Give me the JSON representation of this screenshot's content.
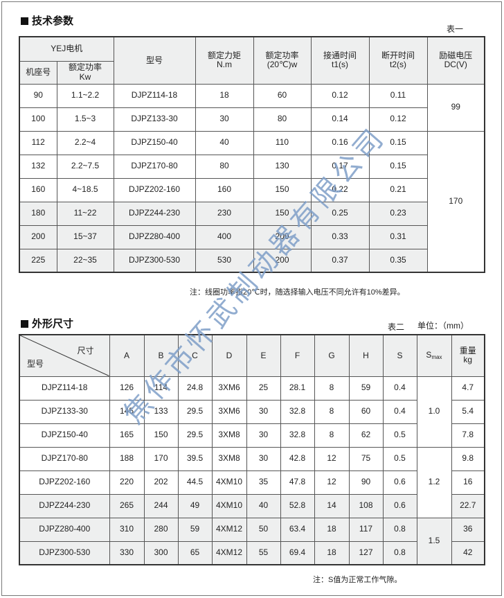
{
  "section1": {
    "title": "技术参数",
    "table_tag": "表一",
    "headers": {
      "motor_group": "YEJ电机",
      "frame": "机座号",
      "rated_power": "额定功率",
      "rated_power_unit": "Kw",
      "model": "型号",
      "torque": "额定力矩",
      "torque_unit": "N.m",
      "power": "额定功率",
      "power_unit": "(20℃)w",
      "t1": "接通时间",
      "t1_unit": "t1(s)",
      "t2": "断开时间",
      "t2_unit": "t2(s)",
      "dc": "励磁电压",
      "dc_unit": "DC(V)"
    },
    "rows": [
      [
        "90",
        "1.1~2.2",
        "DJPZ114-18",
        "18",
        "60",
        "0.12",
        "0.11"
      ],
      [
        "100",
        "1.5~3",
        "DJPZ133-30",
        "30",
        "80",
        "0.14",
        "0.12"
      ],
      [
        "112",
        "2.2~4",
        "DJPZ150-40",
        "40",
        "110",
        "0.16",
        "0.15"
      ],
      [
        "132",
        "2.2~7.5",
        "DJPZ170-80",
        "80",
        "130",
        "0.17",
        "0.15"
      ],
      [
        "160",
        "4~18.5",
        "DJPZ202-160",
        "160",
        "150",
        "0.22",
        "0.21"
      ],
      [
        "180",
        "11~22",
        "DJPZ244-230",
        "230",
        "150",
        "0.25",
        "0.23"
      ],
      [
        "200",
        "15~37",
        "DJPZ280-400",
        "400",
        "200",
        "0.33",
        "0.31"
      ],
      [
        "225",
        "22~35",
        "DJPZ300-530",
        "530",
        "200",
        "0.37",
        "0.35"
      ]
    ],
    "dc_values": [
      "99",
      "170"
    ],
    "note": "注：线圈功率指20℃时，随选择输入电压不同允许有10%差异。"
  },
  "section2": {
    "title": "外形尺寸",
    "table_tag": "表二",
    "unit": "单位：（mm）",
    "headers": {
      "dim": "尺寸",
      "model": "型号",
      "cols": [
        "A",
        "B",
        "C",
        "D",
        "E",
        "F",
        "G",
        "H",
        "S"
      ],
      "smax": "S",
      "smax_sub": "max",
      "weight": "重量",
      "weight_unit": "kg"
    },
    "rows": [
      [
        "DJPZ114-18",
        "126",
        "114",
        "24.8",
        "3XM6",
        "25",
        "28.1",
        "8",
        "59",
        "0.4"
      ],
      [
        "DJPZ133-30",
        "145",
        "133",
        "29.5",
        "3XM6",
        "30",
        "32.8",
        "8",
        "60",
        "0.4"
      ],
      [
        "DJPZ150-40",
        "165",
        "150",
        "29.5",
        "3XM8",
        "30",
        "32.8",
        "8",
        "62",
        "0.5"
      ],
      [
        "DJPZ170-80",
        "188",
        "170",
        "39.5",
        "3XM8",
        "30",
        "42.8",
        "12",
        "75",
        "0.5"
      ],
      [
        "DJPZ202-160",
        "220",
        "202",
        "44.5",
        "4XM10",
        "35",
        "47.8",
        "12",
        "90",
        "0.6"
      ],
      [
        "DJPZ244-230",
        "265",
        "244",
        "49",
        "4XM10",
        "40",
        "52.8",
        "14",
        "108",
        "0.6"
      ],
      [
        "DJPZ280-400",
        "310",
        "280",
        "59",
        "4XM12",
        "50",
        "63.4",
        "18",
        "117",
        "0.8"
      ],
      [
        "DJPZ300-530",
        "330",
        "300",
        "65",
        "4XM12",
        "55",
        "69.4",
        "18",
        "127",
        "0.8"
      ]
    ],
    "smax_values": [
      "1.0",
      "1.2",
      "1.5"
    ],
    "weights": [
      "4.7",
      "5.4",
      "7.8",
      "9.8",
      "16",
      "22.7",
      "36",
      "42"
    ],
    "note": "注：S值为正常工作气隙。"
  },
  "watermark": "焦作市怀武制动器有限公司",
  "colors": {
    "header_bg": "#eeefef",
    "watermark": "#7f9fc8",
    "border": "#333333"
  }
}
